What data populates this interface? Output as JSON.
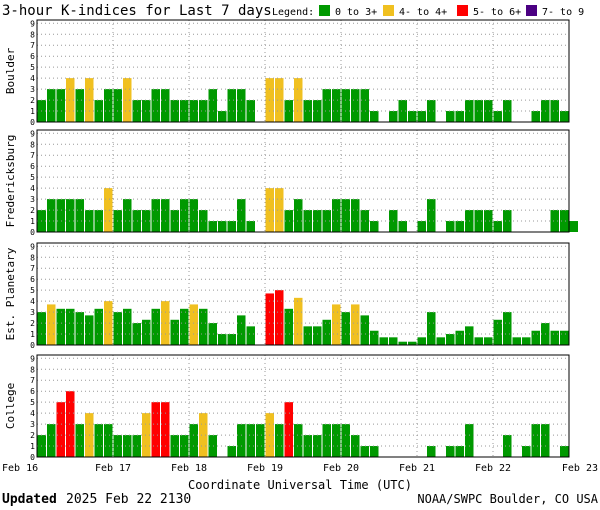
{
  "title": "3-hour K-indices for Last 7 days",
  "legend": {
    "label": "Legend:",
    "items": [
      {
        "label": "0 to 3+",
        "color": "#009900"
      },
      {
        "label": "4- to 4+",
        "color": "#f0c020"
      },
      {
        "label": "5- to 6+",
        "color": "#ff0000"
      },
      {
        "label": "7- to 9",
        "color": "#4b0082"
      }
    ]
  },
  "xlabel": "Coordinate Universal Time (UTC)",
  "footer": {
    "updated_label": "Updated",
    "updated_value": "2025 Feb 22 2130",
    "source": "NOAA/SWPC Boulder, CO USA"
  },
  "chart_data": {
    "type": "bar",
    "ylim": [
      0,
      9
    ],
    "yticks": [
      "0",
      "1",
      "2",
      "3",
      "4",
      "5",
      "6",
      "7",
      "8",
      "9"
    ],
    "x_ticks": [
      "Feb 16",
      "Feb 17",
      "Feb 18",
      "Feb 19",
      "Feb 20",
      "Feb 21",
      "Feb 22",
      "Feb 23"
    ],
    "grid": true,
    "panels": [
      {
        "name": "Boulder",
        "values": [
          2,
          3,
          3,
          4,
          3,
          4,
          2,
          3,
          3,
          4,
          2,
          2,
          3,
          3,
          2,
          2,
          2,
          2,
          3,
          1,
          3,
          3,
          2,
          0,
          4,
          4,
          2,
          4,
          2,
          2,
          3,
          3,
          3,
          3,
          3,
          1,
          0,
          1,
          2,
          1,
          1,
          2,
          0,
          1,
          1,
          2,
          2,
          2,
          1,
          2,
          0,
          0,
          1,
          2,
          2,
          1,
          0
        ]
      },
      {
        "name": "Fredericksburg",
        "values": [
          2,
          3,
          3,
          3,
          3,
          2,
          2,
          4,
          2,
          3,
          2,
          2,
          3,
          3,
          2,
          3,
          3,
          2,
          1,
          1,
          1,
          3,
          1,
          0,
          4,
          4,
          2,
          3,
          2,
          2,
          2,
          3,
          3,
          3,
          2,
          1,
          0,
          2,
          1,
          0,
          1,
          3,
          0,
          1,
          1,
          2,
          2,
          2,
          1,
          2,
          0,
          0,
          0,
          0,
          2,
          2,
          1
        ]
      },
      {
        "name": "Est. Planetary",
        "values": [
          3,
          3.7,
          3.3,
          3.3,
          3,
          2.7,
          3.3,
          4,
          3,
          3.3,
          2,
          2.3,
          3.3,
          4,
          2.3,
          3.3,
          3.7,
          3.3,
          2,
          1,
          1,
          2.7,
          1.7,
          0,
          4.7,
          5,
          3.3,
          4.3,
          1.7,
          1.7,
          2.3,
          3.7,
          3,
          3.7,
          2.7,
          1.3,
          0.7,
          0.7,
          0.3,
          0.3,
          0.7,
          3,
          0.7,
          1,
          1.3,
          1.7,
          0.7,
          0.7,
          2.3,
          3,
          0.7,
          0.7,
          1.3,
          2,
          1.3,
          1.3,
          0
        ]
      },
      {
        "name": "College",
        "values": [
          2,
          3,
          5,
          6,
          3,
          4,
          3,
          3,
          2,
          2,
          2,
          4,
          5,
          5,
          2,
          2,
          3,
          4,
          2,
          0,
          1,
          3,
          3,
          3,
          4,
          3,
          5,
          3,
          2,
          2,
          3,
          3,
          3,
          2,
          1,
          1,
          0,
          0,
          0,
          0,
          0,
          1,
          0,
          1,
          1,
          3,
          0,
          0,
          0,
          2,
          0,
          1,
          3,
          3,
          0,
          1,
          0
        ]
      }
    ]
  }
}
